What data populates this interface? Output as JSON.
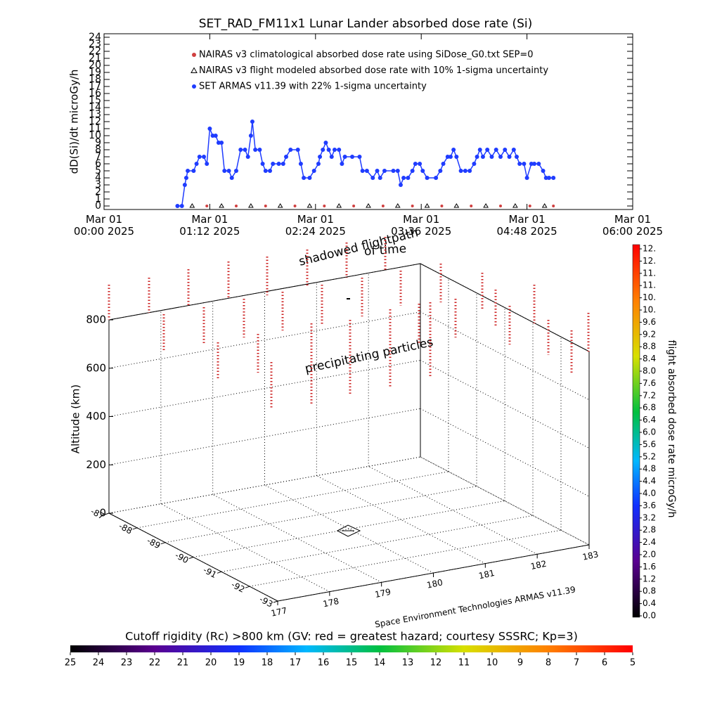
{
  "chart_data": [
    {
      "type": "line",
      "title": "SET_RAD_FM11x1  Lunar Lander absorbed dose rate (Si)",
      "y_label": "dD(Si)/dt microGy/h",
      "xlim": [
        0,
        360
      ],
      "xticks": [
        {
          "value": 0,
          "label": "Mar 01\n00:00 2025"
        },
        {
          "value": 72,
          "label": "Mar 01\n01:12 2025"
        },
        {
          "value": 144,
          "label": "Mar 01\n02:24 2025"
        },
        {
          "value": 216,
          "label": "Mar 01\n03:36 2025"
        },
        {
          "value": 288,
          "label": "Mar 01\n04:48 2025"
        },
        {
          "value": 360,
          "label": "Mar 01\n06:00 2025"
        }
      ],
      "ylim": [
        -0.5,
        24.5
      ],
      "yticks": [
        0,
        1,
        2,
        3,
        4,
        5,
        6,
        7,
        8,
        9,
        10,
        11,
        12,
        13,
        14,
        15,
        16,
        17,
        18,
        19,
        20,
        21,
        22,
        23,
        24
      ],
      "series": [
        {
          "name": "NAIRAS v3 climatological absorbed dose rate using SiDose_G0.txt SEP=0",
          "color": "#d04040",
          "marker": "circle",
          "x": [
            50,
            70,
            90,
            110,
            130,
            150,
            170,
            190,
            210,
            230,
            250,
            270,
            290,
            306
          ],
          "values": [
            0,
            0,
            0,
            0,
            0,
            0,
            0,
            0,
            0,
            0,
            0,
            0,
            0,
            0
          ]
        },
        {
          "name": "NAIRAS v3 flight modeled absorbed dose rate with 10% 1-sigma uncertainty",
          "color": "#000000",
          "marker": "triangle",
          "x": [
            60,
            80,
            100,
            120,
            140,
            160,
            180,
            200,
            220,
            240,
            260,
            280,
            300
          ],
          "values": [
            0,
            0,
            0,
            0,
            0,
            0,
            0,
            0,
            0,
            0,
            0,
            0,
            0
          ]
        },
        {
          "name": "SET ARMAS v11.39 with 22% 1-sigma uncertainty",
          "color": "#1f3cff",
          "marker": "circle",
          "x": [
            50,
            53,
            55,
            56,
            57,
            61,
            63,
            65,
            68,
            70,
            72,
            74,
            76,
            78,
            80,
            82,
            85,
            87,
            90,
            93,
            96,
            98,
            100,
            101,
            103,
            106,
            108,
            110,
            113,
            115,
            119,
            122,
            124,
            127,
            132,
            134,
            136,
            140,
            143,
            146,
            147,
            149,
            151,
            153,
            155,
            157,
            160,
            162,
            164,
            169,
            174,
            176,
            179,
            183,
            186,
            188,
            191,
            197,
            200,
            202,
            204,
            207,
            210,
            212,
            215,
            217,
            220,
            226,
            229,
            231,
            234,
            236,
            238,
            240,
            243,
            246,
            249,
            252,
            254,
            256,
            258,
            261,
            264,
            267,
            270,
            273,
            276,
            279,
            281,
            283,
            286,
            288,
            291,
            293,
            296,
            299,
            301,
            303,
            306
          ],
          "values": [
            0,
            0,
            3,
            4,
            5,
            5,
            6,
            7,
            7,
            6,
            11,
            10,
            10,
            9,
            9,
            5,
            5,
            4,
            5,
            8,
            8,
            7,
            10,
            12,
            8,
            8,
            6,
            5,
            5,
            6,
            6,
            6,
            7,
            8,
            8,
            6,
            4,
            4,
            5,
            6,
            7,
            8,
            9,
            8,
            7,
            8,
            8,
            6,
            7,
            7,
            7,
            5,
            5,
            4,
            5,
            4,
            5,
            5,
            5,
            3,
            4,
            4,
            5,
            6,
            6,
            5,
            4,
            4,
            5,
            6,
            7,
            7,
            8,
            7,
            5,
            5,
            5,
            6,
            7,
            8,
            7,
            8,
            7,
            8,
            7,
            8,
            7,
            8,
            7,
            6,
            6,
            4,
            6,
            6,
            6,
            5,
            4,
            4,
            4
          ]
        }
      ]
    },
    {
      "type": "scatter3d",
      "annotations": [
        "shadowed flightpath",
        "of time",
        "precipitating particles",
        "Space Environment Technologies ARMAS v11.39"
      ],
      "z_label": "Altitude (km)",
      "xlim": [
        177,
        183
      ],
      "xticks": [
        177,
        178,
        179,
        180,
        181,
        182,
        183
      ],
      "ylim": [
        -93,
        -87
      ],
      "yticks": [
        -87,
        -88,
        -89,
        -90,
        -91,
        -92,
        -93
      ],
      "zlim": [
        0,
        800
      ],
      "zticks": [
        0,
        200,
        400,
        600,
        800
      ]
    },
    {
      "type": "colorbar",
      "label": "flight absorbed dose rate microGy/h",
      "clim": [
        0,
        12
      ],
      "ticks": [
        {
          "value": 0,
          "label": "0.0"
        },
        {
          "value": 0.4,
          "label": "0.4"
        },
        {
          "value": 0.8,
          "label": "0.8"
        },
        {
          "value": 1.2,
          "label": "1.2"
        },
        {
          "value": 1.6,
          "label": "1.6"
        },
        {
          "value": 2,
          "label": "2.0"
        },
        {
          "value": 2.4,
          "label": "2.4"
        },
        {
          "value": 2.8,
          "label": "2.8"
        },
        {
          "value": 3.2,
          "label": "3.2"
        },
        {
          "value": 3.6,
          "label": "3.6"
        },
        {
          "value": 4,
          "label": "4.0"
        },
        {
          "value": 4.4,
          "label": "4.4"
        },
        {
          "value": 4.8,
          "label": "4.8"
        },
        {
          "value": 5.2,
          "label": "5.2"
        },
        {
          "value": 5.6,
          "label": "5.6"
        },
        {
          "value": 6,
          "label": "6.0"
        },
        {
          "value": 6.4,
          "label": "6.4"
        },
        {
          "value": 6.8,
          "label": "6.8"
        },
        {
          "value": 7.2,
          "label": "7.2"
        },
        {
          "value": 7.6,
          "label": "7.6"
        },
        {
          "value": 8,
          "label": "8.0"
        },
        {
          "value": 8.4,
          "label": "8.4"
        },
        {
          "value": 8.8,
          "label": "8.8"
        },
        {
          "value": 9.2,
          "label": "9.2"
        },
        {
          "value": 9.6,
          "label": "9.6"
        },
        {
          "value": 10,
          "label": "10."
        },
        {
          "value": 10.4,
          "label": "10."
        },
        {
          "value": 10.8,
          "label": "11."
        },
        {
          "value": 11.2,
          "label": "11."
        },
        {
          "value": 11.6,
          "label": "12."
        },
        {
          "value": 12,
          "label": "12."
        }
      ]
    },
    {
      "type": "colorbar",
      "label": "Cutoff rigidity (Rc) >800 km (GV: red = greatest hazard; courtesy SSSRC; Kp=3)",
      "clim": [
        25,
        5
      ],
      "ticks": [
        25,
        24,
        23,
        22,
        21,
        20,
        19,
        18,
        17,
        16,
        15,
        14,
        13,
        12,
        11,
        10,
        9,
        8,
        7,
        6,
        5
      ]
    }
  ]
}
